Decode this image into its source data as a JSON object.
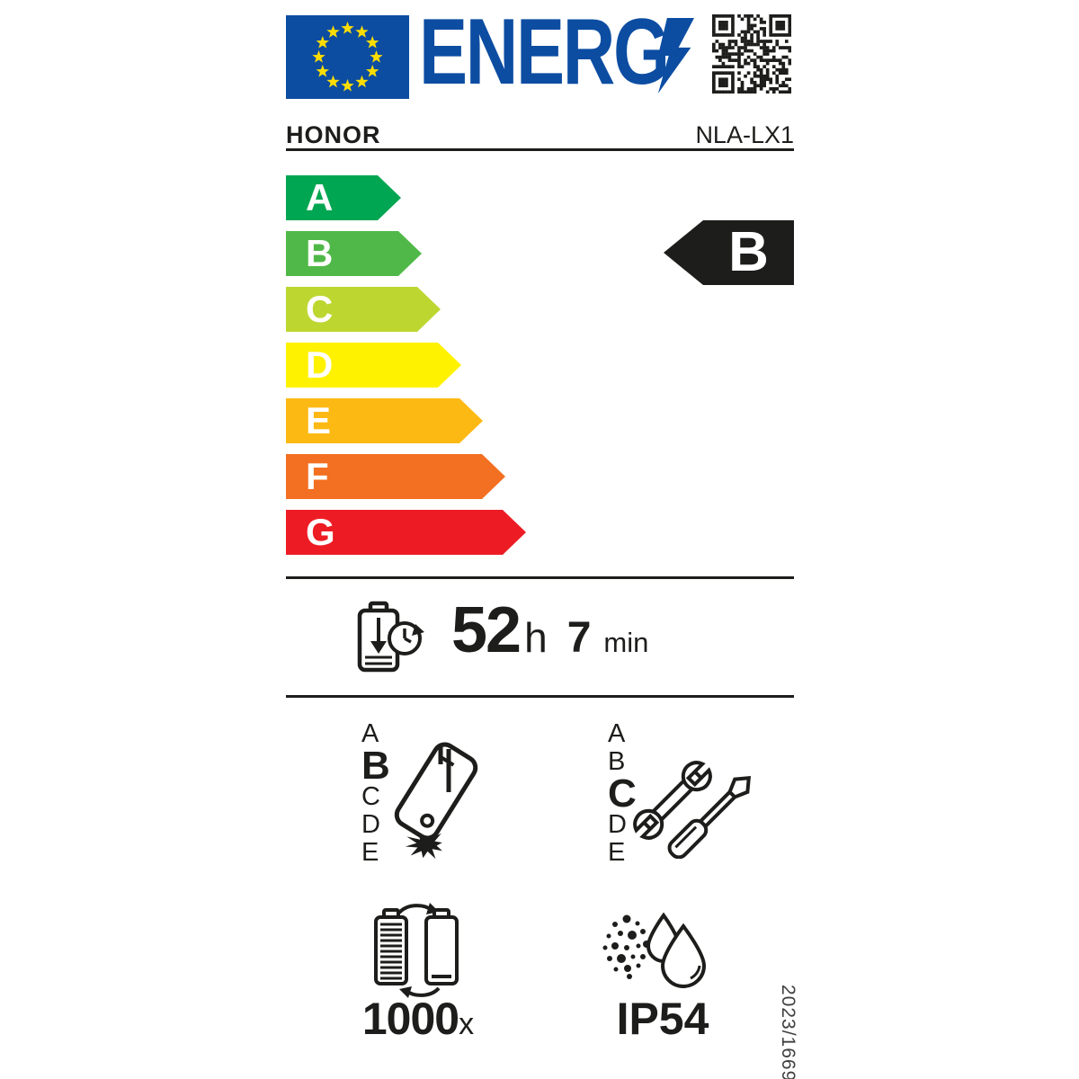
{
  "colors": {
    "brand_blue": "#0c4da2",
    "black": "#1d1d1b",
    "star_yellow": "#ffdd00",
    "class_a": "#00a651",
    "class_b": "#50b848",
    "class_c": "#bed630",
    "class_d": "#fff200",
    "class_e": "#fdb913",
    "class_f": "#f36f21",
    "class_g": "#ed1c24"
  },
  "header": {
    "logo_text": "ENERG"
  },
  "brand": {
    "supplier": "HONOR",
    "model": "NLA-LX1"
  },
  "scale": {
    "classes": [
      {
        "label": "A",
        "color": "#00a651"
      },
      {
        "label": "B",
        "color": "#50b848"
      },
      {
        "label": "C",
        "color": "#bed630"
      },
      {
        "label": "D",
        "color": "#fff200"
      },
      {
        "label": "E",
        "color": "#fdb913"
      },
      {
        "label": "F",
        "color": "#f36f21"
      },
      {
        "label": "G",
        "color": "#ed1c24"
      }
    ],
    "rating": "B"
  },
  "endurance": {
    "hours": "52",
    "hours_unit": "h",
    "minutes": "7",
    "minutes_unit": "min"
  },
  "reliability": {
    "scale": [
      "A",
      "B",
      "C",
      "D",
      "E"
    ],
    "rating": "B"
  },
  "repairability": {
    "scale": [
      "A",
      "B",
      "C",
      "D",
      "E"
    ],
    "rating": "C"
  },
  "battery_cycles": {
    "value": "1000",
    "unit": "x"
  },
  "ingress_protection": {
    "rating": "IP54"
  },
  "regulation": {
    "reference": "2023/1669"
  },
  "icons": {
    "flag": "eu-flag",
    "bolt": "lightning-bolt",
    "qr": "qr-code",
    "endurance": "battery-discharge-clock",
    "reliability": "falling-phone-impact",
    "repairability": "wrench-screwdriver",
    "cycles": "battery-recycle-arrows",
    "ingress": "dust-and-water-drops"
  }
}
